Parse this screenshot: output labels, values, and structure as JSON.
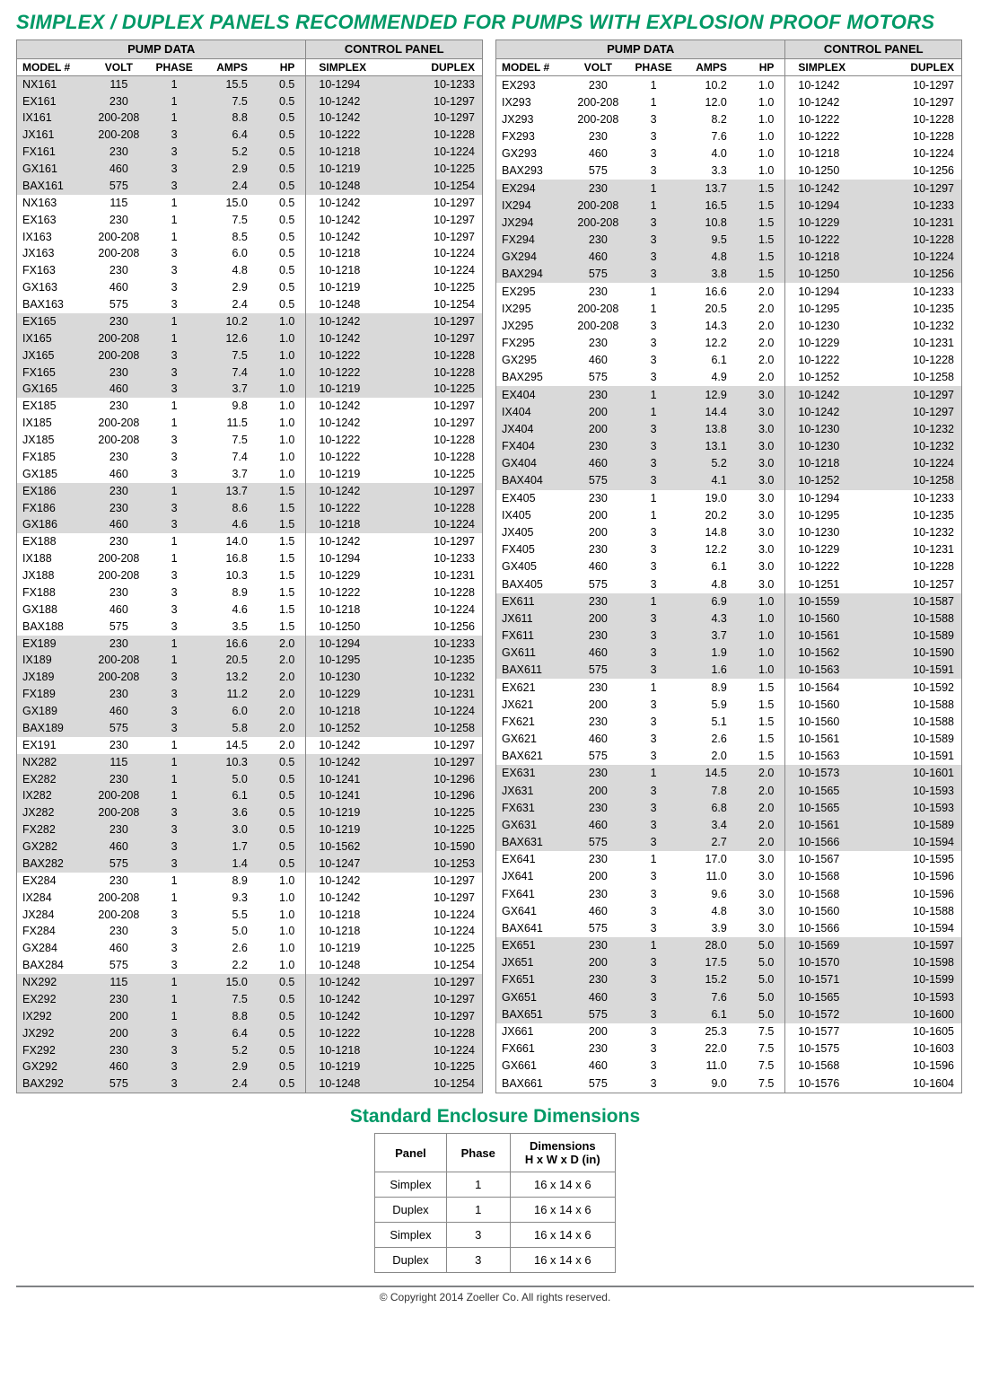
{
  "title": "SIMPLEX / DUPLEX PANELS  RECOMMENDED FOR PUMPS WITH EXPLOSION PROOF MOTORS",
  "group_headers": {
    "pump": "PUMP DATA",
    "panel": "CONTROL PANEL"
  },
  "col_headers": {
    "model": "MODEL #",
    "volt": "VOLT",
    "phase": "PHASE",
    "amps": "AMPS",
    "hp": "HP",
    "simplex": "SIMPLEX",
    "duplex": "DUPLEX"
  },
  "colors": {
    "accent": "#009966",
    "shade": "#d9d9d9",
    "rule": "#808285"
  },
  "left": [
    {
      "s": 1,
      "r": [
        [
          "NX161",
          "115",
          "1",
          "15.5",
          "0.5",
          "10-1294",
          "10-1233"
        ],
        [
          "EX161",
          "230",
          "1",
          "7.5",
          "0.5",
          "10-1242",
          "10-1297"
        ],
        [
          "IX161",
          "200-208",
          "1",
          "8.8",
          "0.5",
          "10-1242",
          "10-1297"
        ],
        [
          "JX161",
          "200-208",
          "3",
          "6.4",
          "0.5",
          "10-1222",
          "10-1228"
        ],
        [
          "FX161",
          "230",
          "3",
          "5.2",
          "0.5",
          "10-1218",
          "10-1224"
        ],
        [
          "GX161",
          "460",
          "3",
          "2.9",
          "0.5",
          "10-1219",
          "10-1225"
        ],
        [
          "BAX161",
          "575",
          "3",
          "2.4",
          "0.5",
          "10-1248",
          "10-1254"
        ]
      ]
    },
    {
      "s": 0,
      "r": [
        [
          "NX163",
          "115",
          "1",
          "15.0",
          "0.5",
          "10-1242",
          "10-1297"
        ],
        [
          "EX163",
          "230",
          "1",
          "7.5",
          "0.5",
          "10-1242",
          "10-1297"
        ],
        [
          "IX163",
          "200-208",
          "1",
          "8.5",
          "0.5",
          "10-1242",
          "10-1297"
        ],
        [
          "JX163",
          "200-208",
          "3",
          "6.0",
          "0.5",
          "10-1218",
          "10-1224"
        ],
        [
          "FX163",
          "230",
          "3",
          "4.8",
          "0.5",
          "10-1218",
          "10-1224"
        ],
        [
          "GX163",
          "460",
          "3",
          "2.9",
          "0.5",
          "10-1219",
          "10-1225"
        ],
        [
          "BAX163",
          "575",
          "3",
          "2.4",
          "0.5",
          "10-1248",
          "10-1254"
        ]
      ]
    },
    {
      "s": 1,
      "r": [
        [
          "EX165",
          "230",
          "1",
          "10.2",
          "1.0",
          "10-1242",
          "10-1297"
        ],
        [
          "IX165",
          "200-208",
          "1",
          "12.6",
          "1.0",
          "10-1242",
          "10-1297"
        ],
        [
          "JX165",
          "200-208",
          "3",
          "7.5",
          "1.0",
          "10-1222",
          "10-1228"
        ],
        [
          "FX165",
          "230",
          "3",
          "7.4",
          "1.0",
          "10-1222",
          "10-1228"
        ],
        [
          "GX165",
          "460",
          "3",
          "3.7",
          "1.0",
          "10-1219",
          "10-1225"
        ]
      ]
    },
    {
      "s": 0,
      "r": [
        [
          "EX185",
          "230",
          "1",
          "9.8",
          "1.0",
          "10-1242",
          "10-1297"
        ],
        [
          "IX185",
          "200-208",
          "1",
          "11.5",
          "1.0",
          "10-1242",
          "10-1297"
        ],
        [
          "JX185",
          "200-208",
          "3",
          "7.5",
          "1.0",
          "10-1222",
          "10-1228"
        ],
        [
          "FX185",
          "230",
          "3",
          "7.4",
          "1.0",
          "10-1222",
          "10-1228"
        ],
        [
          "GX185",
          "460",
          "3",
          "3.7",
          "1.0",
          "10-1219",
          "10-1225"
        ]
      ]
    },
    {
      "s": 1,
      "r": [
        [
          "EX186",
          "230",
          "1",
          "13.7",
          "1.5",
          "10-1242",
          "10-1297"
        ],
        [
          "FX186",
          "230",
          "3",
          "8.6",
          "1.5",
          "10-1222",
          "10-1228"
        ],
        [
          "GX186",
          "460",
          "3",
          "4.6",
          "1.5",
          "10-1218",
          "10-1224"
        ]
      ]
    },
    {
      "s": 0,
      "r": [
        [
          "EX188",
          "230",
          "1",
          "14.0",
          "1.5",
          "10-1242",
          "10-1297"
        ],
        [
          "IX188",
          "200-208",
          "1",
          "16.8",
          "1.5",
          "10-1294",
          "10-1233"
        ],
        [
          "JX188",
          "200-208",
          "3",
          "10.3",
          "1.5",
          "10-1229",
          "10-1231"
        ],
        [
          "FX188",
          "230",
          "3",
          "8.9",
          "1.5",
          "10-1222",
          "10-1228"
        ],
        [
          "GX188",
          "460",
          "3",
          "4.6",
          "1.5",
          "10-1218",
          "10-1224"
        ],
        [
          "BAX188",
          "575",
          "3",
          "3.5",
          "1.5",
          "10-1250",
          "10-1256"
        ]
      ]
    },
    {
      "s": 1,
      "r": [
        [
          "EX189",
          "230",
          "1",
          "16.6",
          "2.0",
          "10-1294",
          "10-1233"
        ],
        [
          "IX189",
          "200-208",
          "1",
          "20.5",
          "2.0",
          "10-1295",
          "10-1235"
        ],
        [
          "JX189",
          "200-208",
          "3",
          "13.2",
          "2.0",
          "10-1230",
          "10-1232"
        ],
        [
          "FX189",
          "230",
          "3",
          "11.2",
          "2.0",
          "10-1229",
          "10-1231"
        ],
        [
          "GX189",
          "460",
          "3",
          "6.0",
          "2.0",
          "10-1218",
          "10-1224"
        ],
        [
          "BAX189",
          "575",
          "3",
          "5.8",
          "2.0",
          "10-1252",
          "10-1258"
        ]
      ]
    },
    {
      "s": 0,
      "r": [
        [
          "EX191",
          "230",
          "1",
          "14.5",
          "2.0",
          "10-1242",
          "10-1297"
        ]
      ]
    },
    {
      "s": 1,
      "r": [
        [
          "NX282",
          "115",
          "1",
          "10.3",
          "0.5",
          "10-1242",
          "10-1297"
        ],
        [
          "EX282",
          "230",
          "1",
          "5.0",
          "0.5",
          "10-1241",
          "10-1296"
        ],
        [
          "IX282",
          "200-208",
          "1",
          "6.1",
          "0.5",
          "10-1241",
          "10-1296"
        ],
        [
          "JX282",
          "200-208",
          "3",
          "3.6",
          "0.5",
          "10-1219",
          "10-1225"
        ],
        [
          "FX282",
          "230",
          "3",
          "3.0",
          "0.5",
          "10-1219",
          "10-1225"
        ],
        [
          "GX282",
          "460",
          "3",
          "1.7",
          "0.5",
          "10-1562",
          "10-1590"
        ],
        [
          "BAX282",
          "575",
          "3",
          "1.4",
          "0.5",
          "10-1247",
          "10-1253"
        ]
      ]
    },
    {
      "s": 0,
      "r": [
        [
          "EX284",
          "230",
          "1",
          "8.9",
          "1.0",
          "10-1242",
          "10-1297"
        ],
        [
          "IX284",
          "200-208",
          "1",
          "9.3",
          "1.0",
          "10-1242",
          "10-1297"
        ],
        [
          "JX284",
          "200-208",
          "3",
          "5.5",
          "1.0",
          "10-1218",
          "10-1224"
        ],
        [
          "FX284",
          "230",
          "3",
          "5.0",
          "1.0",
          "10-1218",
          "10-1224"
        ],
        [
          "GX284",
          "460",
          "3",
          "2.6",
          "1.0",
          "10-1219",
          "10-1225"
        ],
        [
          "BAX284",
          "575",
          "3",
          "2.2",
          "1.0",
          "10-1248",
          "10-1254"
        ]
      ]
    },
    {
      "s": 1,
      "r": [
        [
          "NX292",
          "115",
          "1",
          "15.0",
          "0.5",
          "10-1242",
          "10-1297"
        ],
        [
          "EX292",
          "230",
          "1",
          "7.5",
          "0.5",
          "10-1242",
          "10-1297"
        ],
        [
          "IX292",
          "200",
          "1",
          "8.8",
          "0.5",
          "10-1242",
          "10-1297"
        ],
        [
          "JX292",
          "200",
          "3",
          "6.4",
          "0.5",
          "10-1222",
          "10-1228"
        ],
        [
          "FX292",
          "230",
          "3",
          "5.2",
          "0.5",
          "10-1218",
          "10-1224"
        ],
        [
          "GX292",
          "460",
          "3",
          "2.9",
          "0.5",
          "10-1219",
          "10-1225"
        ],
        [
          "BAX292",
          "575",
          "3",
          "2.4",
          "0.5",
          "10-1248",
          "10-1254"
        ]
      ]
    }
  ],
  "right": [
    {
      "s": 0,
      "r": [
        [
          "EX293",
          "230",
          "1",
          "10.2",
          "1.0",
          "10-1242",
          "10-1297"
        ],
        [
          "IX293",
          "200-208",
          "1",
          "12.0",
          "1.0",
          "10-1242",
          "10-1297"
        ],
        [
          "JX293",
          "200-208",
          "3",
          "8.2",
          "1.0",
          "10-1222",
          "10-1228"
        ],
        [
          "FX293",
          "230",
          "3",
          "7.6",
          "1.0",
          "10-1222",
          "10-1228"
        ],
        [
          "GX293",
          "460",
          "3",
          "4.0",
          "1.0",
          "10-1218",
          "10-1224"
        ],
        [
          "BAX293",
          "575",
          "3",
          "3.3",
          "1.0",
          "10-1250",
          "10-1256"
        ]
      ]
    },
    {
      "s": 1,
      "r": [
        [
          "EX294",
          "230",
          "1",
          "13.7",
          "1.5",
          "10-1242",
          "10-1297"
        ],
        [
          "IX294",
          "200-208",
          "1",
          "16.5",
          "1.5",
          "10-1294",
          "10-1233"
        ],
        [
          "JX294",
          "200-208",
          "3",
          "10.8",
          "1.5",
          "10-1229",
          "10-1231"
        ],
        [
          "FX294",
          "230",
          "3",
          "9.5",
          "1.5",
          "10-1222",
          "10-1228"
        ],
        [
          "GX294",
          "460",
          "3",
          "4.8",
          "1.5",
          "10-1218",
          "10-1224"
        ],
        [
          "BAX294",
          "575",
          "3",
          "3.8",
          "1.5",
          "10-1250",
          "10-1256"
        ]
      ]
    },
    {
      "s": 0,
      "r": [
        [
          "EX295",
          "230",
          "1",
          "16.6",
          "2.0",
          "10-1294",
          "10-1233"
        ],
        [
          "IX295",
          "200-208",
          "1",
          "20.5",
          "2.0",
          "10-1295",
          "10-1235"
        ],
        [
          "JX295",
          "200-208",
          "3",
          "14.3",
          "2.0",
          "10-1230",
          "10-1232"
        ],
        [
          "FX295",
          "230",
          "3",
          "12.2",
          "2.0",
          "10-1229",
          "10-1231"
        ],
        [
          "GX295",
          "460",
          "3",
          "6.1",
          "2.0",
          "10-1222",
          "10-1228"
        ],
        [
          "BAX295",
          "575",
          "3",
          "4.9",
          "2.0",
          "10-1252",
          "10-1258"
        ]
      ]
    },
    {
      "s": 1,
      "r": [
        [
          "EX404",
          "230",
          "1",
          "12.9",
          "3.0",
          "10-1242",
          "10-1297"
        ],
        [
          "IX404",
          "200",
          "1",
          "14.4",
          "3.0",
          "10-1242",
          "10-1297"
        ],
        [
          "JX404",
          "200",
          "3",
          "13.8",
          "3.0",
          "10-1230",
          "10-1232"
        ],
        [
          "FX404",
          "230",
          "3",
          "13.1",
          "3.0",
          "10-1230",
          "10-1232"
        ],
        [
          "GX404",
          "460",
          "3",
          "5.2",
          "3.0",
          "10-1218",
          "10-1224"
        ],
        [
          "BAX404",
          "575",
          "3",
          "4.1",
          "3.0",
          "10-1252",
          "10-1258"
        ]
      ]
    },
    {
      "s": 0,
      "r": [
        [
          "EX405",
          "230",
          "1",
          "19.0",
          "3.0",
          "10-1294",
          "10-1233"
        ],
        [
          "IX405",
          "200",
          "1",
          "20.2",
          "3.0",
          "10-1295",
          "10-1235"
        ],
        [
          "JX405",
          "200",
          "3",
          "14.8",
          "3.0",
          "10-1230",
          "10-1232"
        ],
        [
          "FX405",
          "230",
          "3",
          "12.2",
          "3.0",
          "10-1229",
          "10-1231"
        ],
        [
          "GX405",
          "460",
          "3",
          "6.1",
          "3.0",
          "10-1222",
          "10-1228"
        ],
        [
          "BAX405",
          "575",
          "3",
          "4.8",
          "3.0",
          "10-1251",
          "10-1257"
        ]
      ]
    },
    {
      "s": 1,
      "r": [
        [
          "EX611",
          "230",
          "1",
          "6.9",
          "1.0",
          "10-1559",
          "10-1587"
        ],
        [
          "JX611",
          "200",
          "3",
          "4.3",
          "1.0",
          "10-1560",
          "10-1588"
        ],
        [
          "FX611",
          "230",
          "3",
          "3.7",
          "1.0",
          "10-1561",
          "10-1589"
        ],
        [
          "GX611",
          "460",
          "3",
          "1.9",
          "1.0",
          "10-1562",
          "10-1590"
        ],
        [
          "BAX611",
          "575",
          "3",
          "1.6",
          "1.0",
          "10-1563",
          "10-1591"
        ]
      ]
    },
    {
      "s": 0,
      "r": [
        [
          "EX621",
          "230",
          "1",
          "8.9",
          "1.5",
          "10-1564",
          "10-1592"
        ],
        [
          "JX621",
          "200",
          "3",
          "5.9",
          "1.5",
          "10-1560",
          "10-1588"
        ],
        [
          "FX621",
          "230",
          "3",
          "5.1",
          "1.5",
          "10-1560",
          "10-1588"
        ],
        [
          "GX621",
          "460",
          "3",
          "2.6",
          "1.5",
          "10-1561",
          "10-1589"
        ],
        [
          "BAX621",
          "575",
          "3",
          "2.0",
          "1.5",
          "10-1563",
          "10-1591"
        ]
      ]
    },
    {
      "s": 1,
      "r": [
        [
          "EX631",
          "230",
          "1",
          "14.5",
          "2.0",
          "10-1573",
          "10-1601"
        ],
        [
          "JX631",
          "200",
          "3",
          "7.8",
          "2.0",
          "10-1565",
          "10-1593"
        ],
        [
          "FX631",
          "230",
          "3",
          "6.8",
          "2.0",
          "10-1565",
          "10-1593"
        ],
        [
          "GX631",
          "460",
          "3",
          "3.4",
          "2.0",
          "10-1561",
          "10-1589"
        ],
        [
          "BAX631",
          "575",
          "3",
          "2.7",
          "2.0",
          "10-1566",
          "10-1594"
        ]
      ]
    },
    {
      "s": 0,
      "r": [
        [
          "EX641",
          "230",
          "1",
          "17.0",
          "3.0",
          "10-1567",
          "10-1595"
        ],
        [
          "JX641",
          "200",
          "3",
          "11.0",
          "3.0",
          "10-1568",
          "10-1596"
        ],
        [
          "FX641",
          "230",
          "3",
          "9.6",
          "3.0",
          "10-1568",
          "10-1596"
        ],
        [
          "GX641",
          "460",
          "3",
          "4.8",
          "3.0",
          "10-1560",
          "10-1588"
        ],
        [
          "BAX641",
          "575",
          "3",
          "3.9",
          "3.0",
          "10-1566",
          "10-1594"
        ]
      ]
    },
    {
      "s": 1,
      "r": [
        [
          "EX651",
          "230",
          "1",
          "28.0",
          "5.0",
          "10-1569",
          "10-1597"
        ],
        [
          "JX651",
          "200",
          "3",
          "17.5",
          "5.0",
          "10-1570",
          "10-1598"
        ],
        [
          "FX651",
          "230",
          "3",
          "15.2",
          "5.0",
          "10-1571",
          "10-1599"
        ],
        [
          "GX651",
          "460",
          "3",
          "7.6",
          "5.0",
          "10-1565",
          "10-1593"
        ],
        [
          "BAX651",
          "575",
          "3",
          "6.1",
          "5.0",
          "10-1572",
          "10-1600"
        ]
      ]
    },
    {
      "s": 0,
      "r": [
        [
          "JX661",
          "200",
          "3",
          "25.3",
          "7.5",
          "10-1577",
          "10-1605"
        ],
        [
          "FX661",
          "230",
          "3",
          "22.0",
          "7.5",
          "10-1575",
          "10-1603"
        ],
        [
          "GX661",
          "460",
          "3",
          "11.0",
          "7.5",
          "10-1568",
          "10-1596"
        ],
        [
          "BAX661",
          "575",
          "3",
          "9.0",
          "7.5",
          "10-1576",
          "10-1604"
        ]
      ]
    }
  ],
  "dims": {
    "title": "Standard Enclosure Dimensions",
    "headers": [
      "Panel",
      "Phase",
      "Dimensions\nH x W x D (in)"
    ],
    "rows": [
      [
        "Simplex",
        "1",
        "16 x 14 x 6"
      ],
      [
        "Duplex",
        "1",
        "16 x 14 x 6"
      ],
      [
        "Simplex",
        "3",
        "16 x 14 x 6"
      ],
      [
        "Duplex",
        "3",
        "16 x 14 x 6"
      ]
    ]
  },
  "footer": "© Copyright 2014 Zoeller Co. All rights reserved."
}
